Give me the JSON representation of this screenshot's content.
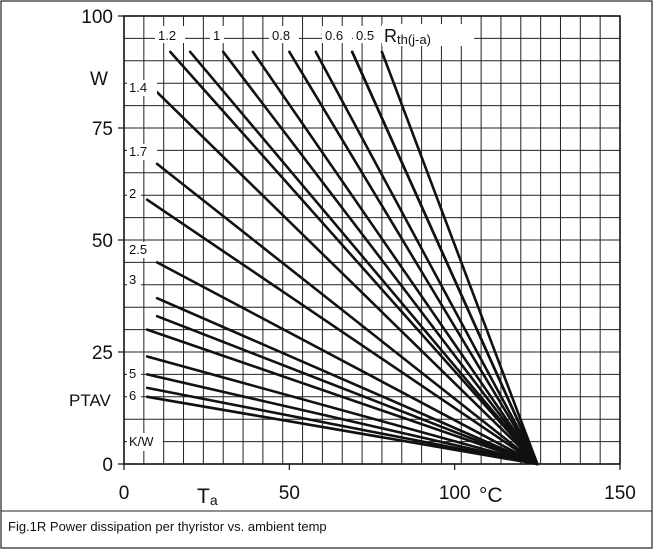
{
  "figure": {
    "caption": "Fig.1R Power dissipation per thyristor vs. ambient temp"
  },
  "chart_data": {
    "type": "line",
    "title": "",
    "xlabel": {
      "main": "T",
      "sub": "a",
      "unit": "°C"
    },
    "ylabel": {
      "name": "PTAV",
      "unit": "W"
    },
    "xlim": [
      0,
      150
    ],
    "ylim": [
      0,
      100
    ],
    "x_tick_labels": [
      "0",
      "50",
      "100",
      "150"
    ],
    "y_tick_labels": [
      "0",
      "25",
      "50",
      "75",
      "100"
    ],
    "grid": true,
    "curve_param_label": {
      "main": "R",
      "sub": "th(j-a)",
      "unit": "K/W"
    },
    "x_intercept": 125,
    "top_labels": [
      "1.2",
      "1",
      "0.8",
      "0.6",
      "0.5"
    ],
    "left_labels": [
      "1.4",
      "1.7",
      "2",
      "2.5",
      "3",
      "5",
      "6"
    ],
    "series": [
      {
        "rth": "0.5",
        "points": [
          [
            78,
            92
          ],
          [
            125,
            0
          ]
        ]
      },
      {
        "rth": "",
        "points": [
          [
            69,
            92
          ],
          [
            125,
            0
          ]
        ]
      },
      {
        "rth": "0.6",
        "points": [
          [
            69,
            92
          ],
          [
            125,
            0
          ]
        ]
      },
      {
        "rth": "",
        "points": [
          [
            58,
            92
          ],
          [
            125,
            0
          ]
        ]
      },
      {
        "rth": "0.8",
        "points": [
          [
            50,
            92
          ],
          [
            125,
            0
          ]
        ]
      },
      {
        "rth": "",
        "points": [
          [
            39,
            92
          ],
          [
            125,
            0
          ]
        ]
      },
      {
        "rth": "1",
        "points": [
          [
            30,
            92
          ],
          [
            125,
            0
          ]
        ]
      },
      {
        "rth": "",
        "points": [
          [
            20,
            92
          ],
          [
            125,
            0
          ]
        ]
      },
      {
        "rth": "1.2",
        "points": [
          [
            14,
            92
          ],
          [
            125,
            0
          ]
        ]
      },
      {
        "rth": "1.4",
        "points": [
          [
            10,
            83
          ],
          [
            125,
            0
          ]
        ]
      },
      {
        "rth": "1.7",
        "points": [
          [
            10,
            67
          ],
          [
            125,
            0
          ]
        ]
      },
      {
        "rth": "2",
        "points": [
          [
            7,
            59
          ],
          [
            125,
            0
          ]
        ]
      },
      {
        "rth": "2.5",
        "points": [
          [
            10,
            45
          ],
          [
            125,
            0
          ]
        ]
      },
      {
        "rth": "3",
        "points": [
          [
            10,
            37
          ],
          [
            125,
            0
          ]
        ]
      },
      {
        "rth": "",
        "points": [
          [
            10,
            33
          ],
          [
            125,
            0
          ]
        ]
      },
      {
        "rth": "",
        "points": [
          [
            7,
            30
          ],
          [
            125,
            0
          ]
        ]
      },
      {
        "rth": "",
        "points": [
          [
            7,
            24
          ],
          [
            125,
            0
          ]
        ]
      },
      {
        "rth": "5",
        "points": [
          [
            7,
            20
          ],
          [
            125,
            0
          ]
        ]
      },
      {
        "rth": "",
        "points": [
          [
            7,
            17
          ],
          [
            125,
            0
          ]
        ]
      },
      {
        "rth": "6",
        "points": [
          [
            7,
            15
          ],
          [
            125,
            0
          ]
        ]
      }
    ]
  }
}
